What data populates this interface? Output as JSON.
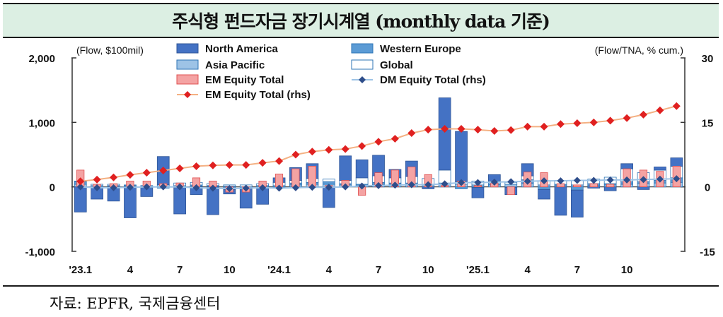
{
  "title": "주식형 펀드자금 장기시계열 (monthly data 기준)",
  "source": "자료: EPFR,  국제금융센터",
  "chart_data": {
    "type": "bar",
    "left_unit": "(Flow, $100mil)",
    "right_unit": "(Flow/TNA, % cum.)",
    "ylim": [
      -1000,
      2000
    ],
    "ylim_right": [
      -15,
      30
    ],
    "yticks": [
      "2,000",
      "1,000",
      "0",
      "-1,000"
    ],
    "yticks_values": [
      2000,
      1000,
      0,
      -1000
    ],
    "yticks_right": [
      "30",
      "15",
      "0",
      "-15"
    ],
    "yticks_right_values": [
      30,
      15,
      0,
      -15
    ],
    "x_tick_labels": [
      {
        "label": "'23.1",
        "index": 0
      },
      {
        "label": "4",
        "index": 3
      },
      {
        "label": "7",
        "index": 6
      },
      {
        "label": "10",
        "index": 9
      },
      {
        "label": "'24.1",
        "index": 12
      },
      {
        "label": "4",
        "index": 15
      },
      {
        "label": "7",
        "index": 18
      },
      {
        "label": "10",
        "index": 21
      },
      {
        "label": "'25.1",
        "index": 24
      },
      {
        "label": "4",
        "index": 27
      },
      {
        "label": "7",
        "index": 30
      },
      {
        "label": "10",
        "index": 33
      }
    ],
    "legend": {
      "na": "North America",
      "we": "Western Europe",
      "ap": "Asia Pacific",
      "gl": "Global",
      "em": "EM Equity Total",
      "dm_rhs": "DM Equity Total (rhs)",
      "em_rhs": "EM Equity Total (rhs)"
    },
    "colors": {
      "na": "#4472c4",
      "we": "#5b9bd5",
      "ap": "#9dc3e6",
      "gl": "#ffffff",
      "em": "#f4a3a3",
      "dm_line": "#9dc3e6",
      "dm_marker": "#2e4d8a",
      "em_line": "#f4b183",
      "em_marker": "#e02020"
    },
    "stack_series": [
      {
        "key": "ap",
        "values": [
          40,
          20,
          10,
          10,
          10,
          10,
          20,
          10,
          10,
          10,
          0,
          20,
          20,
          30,
          40,
          40,
          30,
          20,
          40,
          40,
          40,
          30,
          50,
          40,
          30,
          30,
          40,
          50,
          30,
          20,
          30,
          20,
          30,
          40,
          50,
          60,
          70
        ]
      },
      {
        "key": "we",
        "values": [
          40,
          -10,
          10,
          10,
          -10,
          -20,
          -10,
          20,
          10,
          -40,
          -30,
          -10,
          -10,
          30,
          30,
          40,
          20,
          20,
          30,
          20,
          20,
          10,
          10,
          -30,
          -10,
          20,
          -10,
          60,
          -40,
          20,
          -50,
          30,
          20,
          40,
          30,
          40,
          70
        ]
      },
      {
        "key": "gl",
        "values": [
          10,
          20,
          20,
          10,
          10,
          20,
          40,
          40,
          30,
          20,
          30,
          30,
          50,
          40,
          60,
          40,
          50,
          100,
          100,
          80,
          100,
          90,
          200,
          40,
          60,
          40,
          30,
          60,
          60,
          60,
          70,
          70,
          100,
          200,
          140,
          160,
          180
        ]
      },
      {
        "key": "na",
        "values": [
          -390,
          -180,
          -220,
          -480,
          -140,
          440,
          -410,
          -120,
          -430,
          -70,
          -300,
          -260,
          70,
          200,
          230,
          -320,
          380,
          280,
          320,
          130,
          240,
          -30,
          1120,
          780,
          -160,
          100,
          -110,
          190,
          -150,
          -440,
          -420,
          -20,
          -60,
          80,
          -40,
          50,
          130
        ]
      }
    ],
    "em_values": [
      260,
      40,
      50,
      90,
      90,
      50,
      60,
      140,
      90,
      -80,
      -80,
      90,
      200,
      280,
      320,
      20,
      100,
      -130,
      220,
      260,
      310,
      190,
      20,
      90,
      20,
      60,
      -120,
      230,
      220,
      50,
      30,
      50,
      40,
      280,
      260,
      240,
      320
    ],
    "dm_rhs": [
      0,
      -0.2,
      -0.2,
      -0.1,
      0,
      0,
      0,
      -0.2,
      -0.3,
      -0.4,
      -0.3,
      -0.2,
      -0.3,
      -0.2,
      -0.1,
      -0.1,
      0,
      0.2,
      0.3,
      0.4,
      0.5,
      0.5,
      0.7,
      1.0,
      1.0,
      1.1,
      1.2,
      1.3,
      1.4,
      1.4,
      1.5,
      1.5,
      1.6,
      1.6,
      1.7,
      1.8,
      1.9
    ],
    "em_rhs": [
      1.3,
      1.7,
      2.2,
      2.8,
      3.3,
      3.8,
      4.3,
      4.8,
      5.0,
      5.1,
      5.1,
      5.6,
      6.0,
      7.5,
      8.2,
      8.6,
      8.8,
      9.5,
      10.5,
      11.2,
      12.5,
      13.3,
      13.5,
      13.5,
      13.3,
      13.0,
      13.2,
      14.0,
      14.0,
      14.6,
      14.8,
      15.0,
      15.4,
      16.0,
      16.8,
      17.8,
      18.8
    ]
  }
}
